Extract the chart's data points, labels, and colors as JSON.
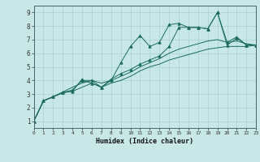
{
  "xlabel": "Humidex (Indice chaleur)",
  "bg_color": "#c8e8e8",
  "grid_color": "#a8d0d0",
  "line_color": "#1a6b5a",
  "xlim": [
    0,
    23
  ],
  "ylim": [
    0.5,
    9.5
  ],
  "xticks": [
    0,
    1,
    2,
    3,
    4,
    5,
    6,
    7,
    8,
    9,
    10,
    11,
    12,
    13,
    14,
    15,
    16,
    17,
    18,
    19,
    20,
    21,
    22,
    23
  ],
  "yticks": [
    1,
    2,
    3,
    4,
    5,
    6,
    7,
    8,
    9
  ],
  "lines": [
    {
      "x": [
        0,
        1,
        2,
        3,
        4,
        5,
        5,
        6,
        7,
        8,
        9,
        10,
        11,
        12,
        13,
        14,
        15,
        16,
        17,
        18,
        19,
        20,
        21,
        22,
        23
      ],
      "y": [
        1.0,
        2.5,
        2.8,
        3.1,
        3.2,
        4.1,
        4.0,
        3.8,
        3.5,
        4.0,
        5.3,
        6.5,
        7.3,
        6.5,
        6.8,
        8.1,
        8.2,
        7.9,
        7.9,
        7.8,
        9.0,
        6.6,
        7.1,
        6.6,
        6.6
      ],
      "marker": "^",
      "markersize": 2.5
    },
    {
      "x": [
        0,
        1,
        2,
        3,
        4,
        5,
        6,
        7,
        8,
        9,
        10,
        11,
        12,
        13,
        14,
        15,
        16,
        17,
        18,
        19,
        20,
        21,
        22,
        23
      ],
      "y": [
        1.0,
        2.5,
        2.8,
        3.1,
        3.2,
        3.5,
        3.8,
        3.5,
        3.8,
        4.0,
        4.3,
        4.7,
        5.0,
        5.2,
        5.5,
        5.7,
        5.9,
        6.1,
        6.3,
        6.4,
        6.5,
        6.5,
        6.5,
        6.6
      ],
      "marker": null,
      "markersize": 0
    },
    {
      "x": [
        0,
        1,
        2,
        3,
        4,
        5,
        6,
        7,
        8,
        9,
        10,
        11,
        12,
        13,
        14,
        15,
        16,
        17,
        18,
        19,
        20,
        21,
        22,
        23
      ],
      "y": [
        1.0,
        2.5,
        2.8,
        3.1,
        3.3,
        4.0,
        4.0,
        3.5,
        4.1,
        4.5,
        4.8,
        5.2,
        5.5,
        5.8,
        6.5,
        7.9,
        7.9,
        7.9,
        7.8,
        9.0,
        6.8,
        7.2,
        6.6,
        6.6
      ],
      "marker": "^",
      "markersize": 2.5
    },
    {
      "x": [
        0,
        1,
        2,
        3,
        4,
        5,
        6,
        7,
        8,
        9,
        10,
        11,
        12,
        13,
        14,
        15,
        16,
        17,
        18,
        19,
        20,
        21,
        22,
        23
      ],
      "y": [
        1.0,
        2.5,
        2.8,
        3.15,
        3.5,
        3.8,
        4.0,
        3.8,
        4.0,
        4.3,
        4.6,
        5.0,
        5.3,
        5.6,
        6.0,
        6.3,
        6.5,
        6.7,
        6.9,
        7.0,
        6.8,
        6.9,
        6.7,
        6.6
      ],
      "marker": null,
      "markersize": 0
    }
  ]
}
